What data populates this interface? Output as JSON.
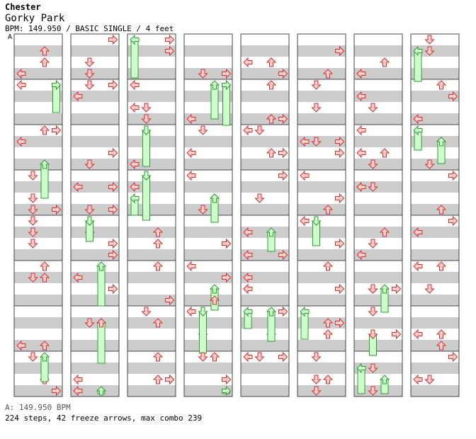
{
  "header": {
    "artist": "Chester",
    "title": "Gorky Park",
    "bpm_label": "BPM",
    "bpm": "149.950",
    "mode": "BASIC SINGLE",
    "difficulty": "4 feet",
    "meta_line": "BPM: 149.950 / BASIC SINGLE / 4 feet",
    "bpm_marker": "A"
  },
  "footer": {
    "bpm_line": "A: 149.950 BPM",
    "stats_line": "224 steps, 42 freeze arrows, max combo 239"
  },
  "chart_grid": {
    "columns": 8,
    "measures_per_column": 8,
    "lanes": [
      "left",
      "down",
      "up",
      "right"
    ],
    "rows_per_measure": 16,
    "colors": {
      "background": "#ffffff",
      "stripe_gray": "#cccccc",
      "border": "#444444",
      "arrow_fill": "#ffcccc",
      "arrow_stroke": "#cc3333",
      "freeze_fill": "#ccffcc",
      "freeze_stroke": "#339933"
    }
  },
  "arrow_icon": "arrow-icon",
  "freeze_icon": "freeze-arrow-icon"
}
